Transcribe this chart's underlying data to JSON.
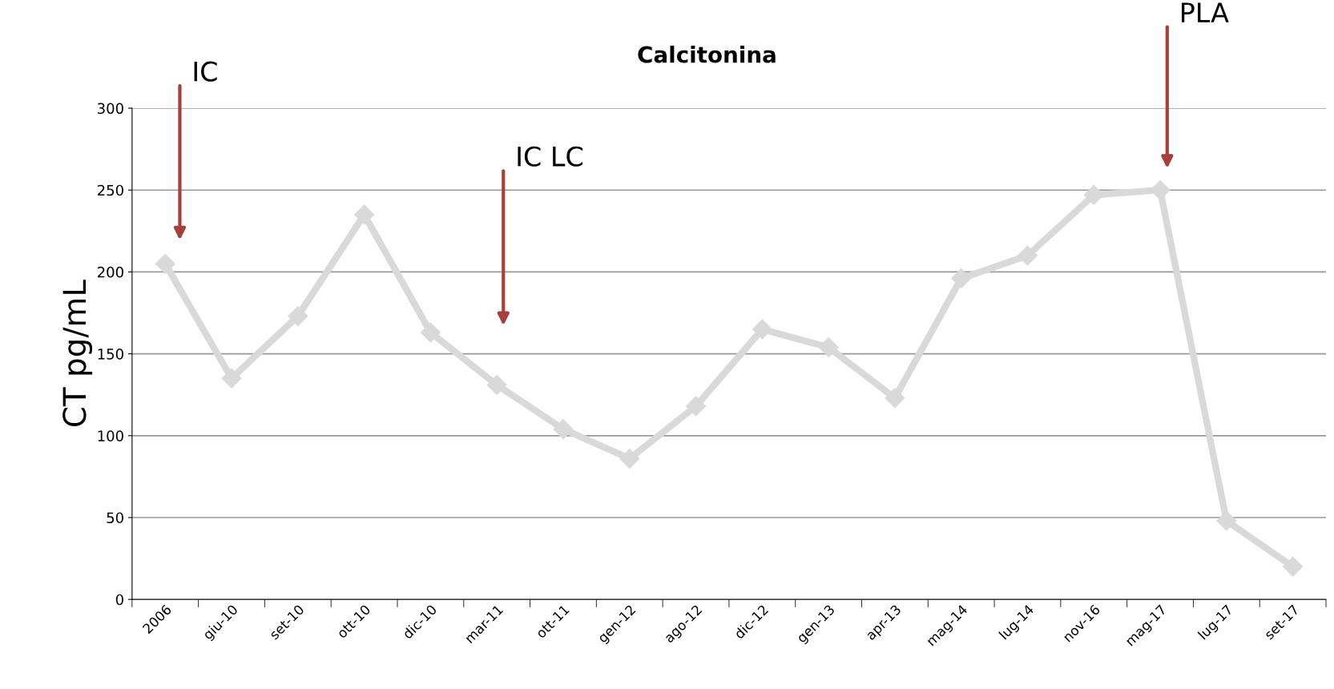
{
  "chart_data": {
    "type": "line",
    "title": "Calcitonina",
    "ylabel": "CT pg/mL",
    "categories": [
      "2006",
      "giu-10",
      "set-10",
      "ott-10",
      "dic-10",
      "mar-11",
      "ott-11",
      "gen-12",
      "ago-12",
      "dic-12",
      "gen-13",
      "apr-13",
      "mag-14",
      "lug-14",
      "nov-16",
      "mag-17",
      "lug-17",
      "set-17"
    ],
    "series": [
      {
        "color": "#d9d9d9",
        "values": [
          205,
          135,
          173,
          235,
          163,
          131,
          104,
          86,
          118,
          165,
          154,
          123,
          196,
          210,
          247,
          250,
          48,
          20
        ]
      }
    ],
    "ylim": [
      0,
      300
    ],
    "yticks": [
      0,
      50,
      100,
      150,
      200,
      250,
      300
    ],
    "grid": "y",
    "marker": "diamond",
    "line_style": "solid",
    "annotations": [
      "IC",
      "IC LC",
      "PLA"
    ]
  }
}
